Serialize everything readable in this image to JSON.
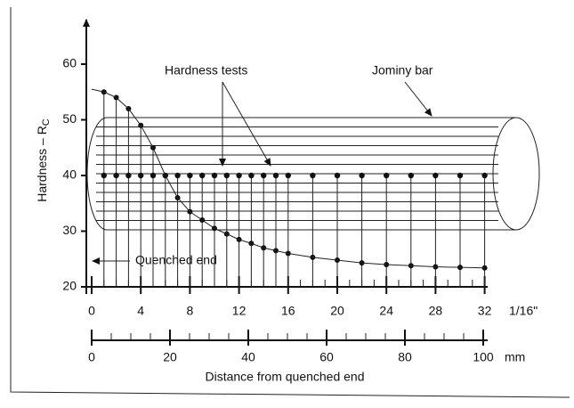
{
  "y_axis": {
    "label": "Hardness – R",
    "label_subscript": "C",
    "ticks": [
      20,
      30,
      40,
      50,
      60
    ]
  },
  "x_axis": {
    "ticks": [
      0,
      4,
      8,
      12,
      16,
      20,
      24,
      28,
      32
    ],
    "unit": "1/16\""
  },
  "mm_axis": {
    "ticks": [
      0,
      20,
      40,
      60,
      80,
      100
    ],
    "unit": "mm"
  },
  "x_axis_title": "Distance from quenched end",
  "labels": {
    "hardness_tests": "Hardness tests",
    "jominy_bar": "Jominy bar",
    "quenched_end": "Quenched end"
  },
  "hardness_curve": {
    "x": [
      0,
      1,
      2,
      3,
      4,
      5,
      6,
      7,
      8,
      9,
      10,
      11,
      12,
      13,
      14,
      15,
      16,
      18,
      20,
      22,
      24,
      26,
      28,
      30,
      32
    ],
    "y": [
      55.5,
      55,
      54,
      52,
      49,
      45,
      40,
      36,
      33.5,
      32,
      30.5,
      29.5,
      28.5,
      27.8,
      27,
      26.5,
      26,
      25.3,
      24.8,
      24.3,
      24,
      23.8,
      23.6,
      23.5,
      23.4
    ]
  },
  "test_row_hardness": 40
}
